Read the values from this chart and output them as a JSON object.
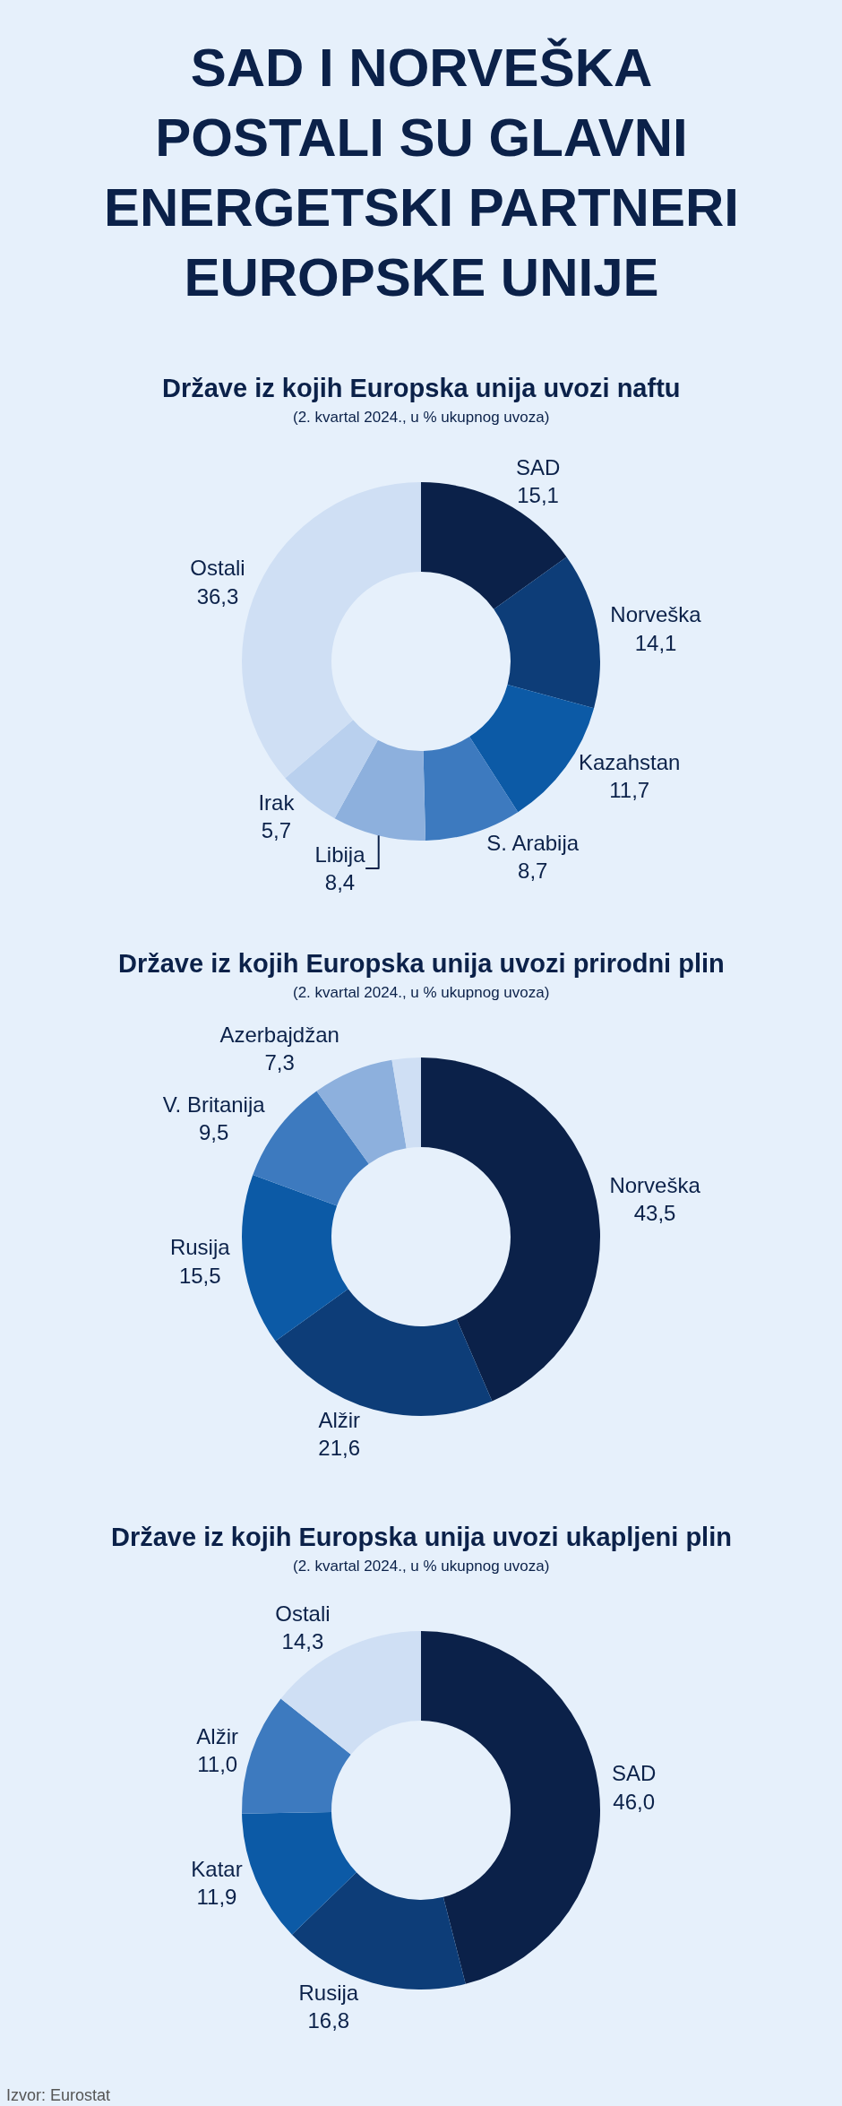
{
  "chart_data": [
    {
      "type": "other",
      "title": "SAD I NORVEŠKA POSTALI SU GLAVNI ENERGETSKI PARTNERI EUROPSKE UNIJE"
    },
    {
      "type": "donut",
      "title": "Države iz kojih Europska unija uvozi naftu",
      "subtitle": "(2. kvartal 2024., u % ukupnog uvoza)",
      "categories": [
        "SAD",
        "Norveška",
        "Kazahstan",
        "S. Arabija",
        "Libija",
        "Irak",
        "Ostali"
      ],
      "values": [
        15.1,
        14.1,
        11.7,
        8.7,
        8.4,
        5.7,
        36.3
      ],
      "value_labels": [
        "15,1",
        "14,1",
        "11,7",
        "8,7",
        "8,4",
        "5,7",
        "36,3"
      ],
      "colors": [
        "#0b2149",
        "#0d3d78",
        "#0c5aa6",
        "#3d7abf",
        "#8db0dd",
        "#b9d0ee",
        "#cfdff4"
      ]
    },
    {
      "type": "donut",
      "title": "Države iz kojih Europska unija uvozi prirodni plin",
      "subtitle": "(2. kvartal 2024., u % ukupnog uvoza)",
      "categories": [
        "Norveška",
        "Alžir",
        "Rusija",
        "V. Britanija",
        "Azerbajdžan",
        null
      ],
      "values": [
        43.5,
        21.6,
        15.5,
        9.5,
        7.3,
        2.6
      ],
      "value_labels": [
        "43,5",
        "21,6",
        "15,5",
        "9,5",
        "7,3",
        null
      ],
      "colors": [
        "#0b2149",
        "#0d3d78",
        "#0c5aa6",
        "#3d7abf",
        "#8db0dd",
        "#cfdff4"
      ]
    },
    {
      "type": "donut",
      "title": "Države iz kojih Europska unija uvozi ukapljeni plin",
      "subtitle": "(2. kvartal 2024., u % ukupnog uvoza)",
      "categories": [
        "SAD",
        "Rusija",
        "Katar",
        "Alžir",
        "Ostali"
      ],
      "values": [
        46.0,
        16.8,
        11.9,
        11.0,
        14.3
      ],
      "value_labels": [
        "46,0",
        "16,8",
        "11,9",
        "11,0",
        "14,3"
      ],
      "colors": [
        "#0b2149",
        "#0d3d78",
        "#0c5aa6",
        "#3d7abf",
        "#cfdff4"
      ],
      "annotations": [
        "Izvor: Eurostat"
      ]
    }
  ]
}
